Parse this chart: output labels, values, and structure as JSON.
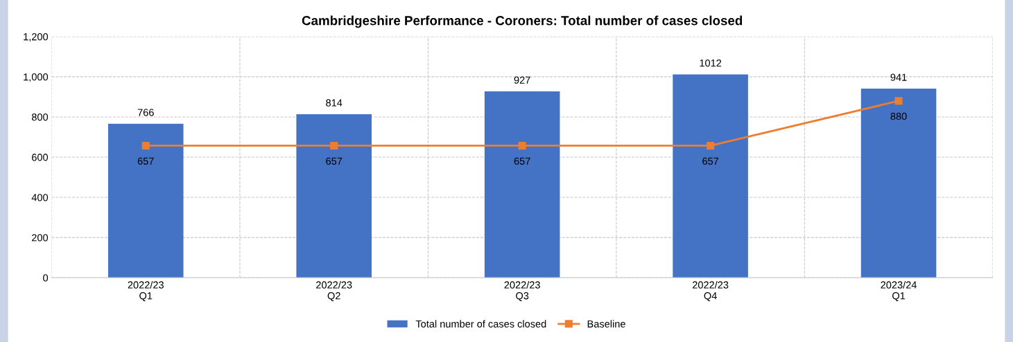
{
  "chart_data": {
    "type": "bar",
    "title": "Cambridgeshire Performance - Coroners: Total number of cases closed",
    "categories": [
      "2022/23\nQ1",
      "2022/23\nQ2",
      "2022/23\nQ3",
      "2022/23\nQ4",
      "2023/24\nQ1"
    ],
    "series": [
      {
        "name": "Total number of cases closed",
        "color": "#4472c4",
        "values": [
          766,
          814,
          927,
          1012,
          941
        ]
      },
      {
        "name": "Baseline",
        "type": "line",
        "color": "#ed7d31",
        "values": [
          657,
          657,
          657,
          657,
          880
        ]
      }
    ],
    "ylim": [
      0,
      1200
    ],
    "yticks": [
      0,
      {
        "value": 200,
        "label": "200"
      },
      {
        "value": 400,
        "label": "400"
      },
      {
        "value": 600,
        "label": "600"
      },
      {
        "value": 800,
        "label": "800"
      },
      {
        "value": 1000,
        "label": "1,000"
      },
      {
        "value": 1200,
        "label": "1,200"
      }
    ],
    "data_labels": true,
    "grid": true,
    "legend": "bottom",
    "marker": "square",
    "line_style": "solid"
  }
}
